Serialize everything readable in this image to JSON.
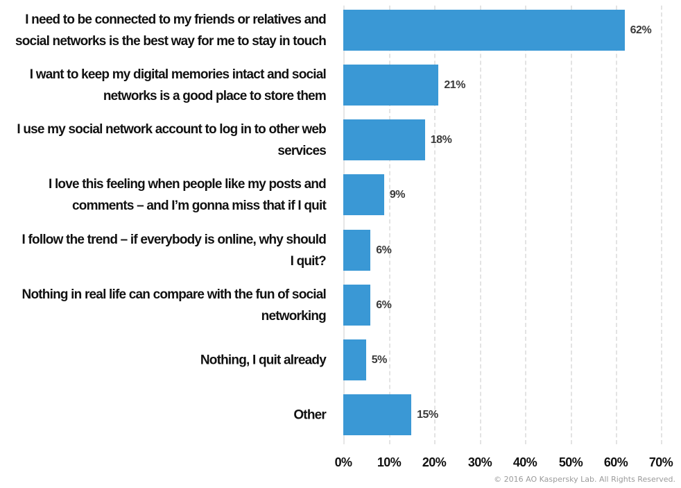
{
  "chart_data": {
    "type": "bar",
    "orientation": "horizontal",
    "title": "",
    "xlabel": "",
    "ylabel": "",
    "xlim": [
      0,
      70
    ],
    "grid": true,
    "legend": null,
    "bar_color": "#3a98d5",
    "categories": [
      "I need to be connected to my friends or relatives and social networks is the best way for me to stay in touch",
      "I want to keep my digital memories intact and social networks is a good place to store them",
      "I use my social network account to log in to other web services",
      "I love this feeling when people like my posts and comments – and I’m gonna miss that if I quit",
      "I follow the trend – if everybody is online, why should I quit?",
      "Nothing in real life can compare with the fun of social networking",
      "Nothing, I quit already",
      "Other"
    ],
    "values": [
      62,
      21,
      18,
      9,
      6,
      6,
      5,
      15
    ],
    "x_ticks": [
      "0%",
      "10%",
      "20%",
      "30%",
      "40%",
      "50%",
      "60%",
      "70%"
    ]
  },
  "rows": [
    {
      "line1": "I need to be connected to my friends or relatives and",
      "line2": "social networks is the best way for me to stay in touch",
      "value": "62%"
    },
    {
      "line1": "I want to keep my digital memories intact and social",
      "line2": "networks is a good place to store them",
      "value": "21%"
    },
    {
      "line1": "I use my social network account to log in to other web",
      "line2": "services",
      "value": "18%"
    },
    {
      "line1": "I love this feeling when people like my posts and",
      "line2": "comments – and I’m gonna miss that if I quit",
      "value": "9%"
    },
    {
      "line1": "I follow the trend – if everybody is online, why should",
      "line2": "I quit?",
      "value": "6%"
    },
    {
      "line1": "Nothing in real life can compare with the fun of social",
      "line2": "networking",
      "value": "6%"
    },
    {
      "line1": "Nothing, I quit already",
      "line2": "",
      "value": "5%"
    },
    {
      "line1": "Other",
      "line2": "",
      "value": "15%"
    }
  ],
  "axis": {
    "ticks": [
      "0%",
      "10%",
      "20%",
      "30%",
      "40%",
      "50%",
      "60%",
      "70%"
    ]
  },
  "footer": {
    "copyright": "© 2016 AO Kaspersky Lab. All Rights Reserved."
  }
}
